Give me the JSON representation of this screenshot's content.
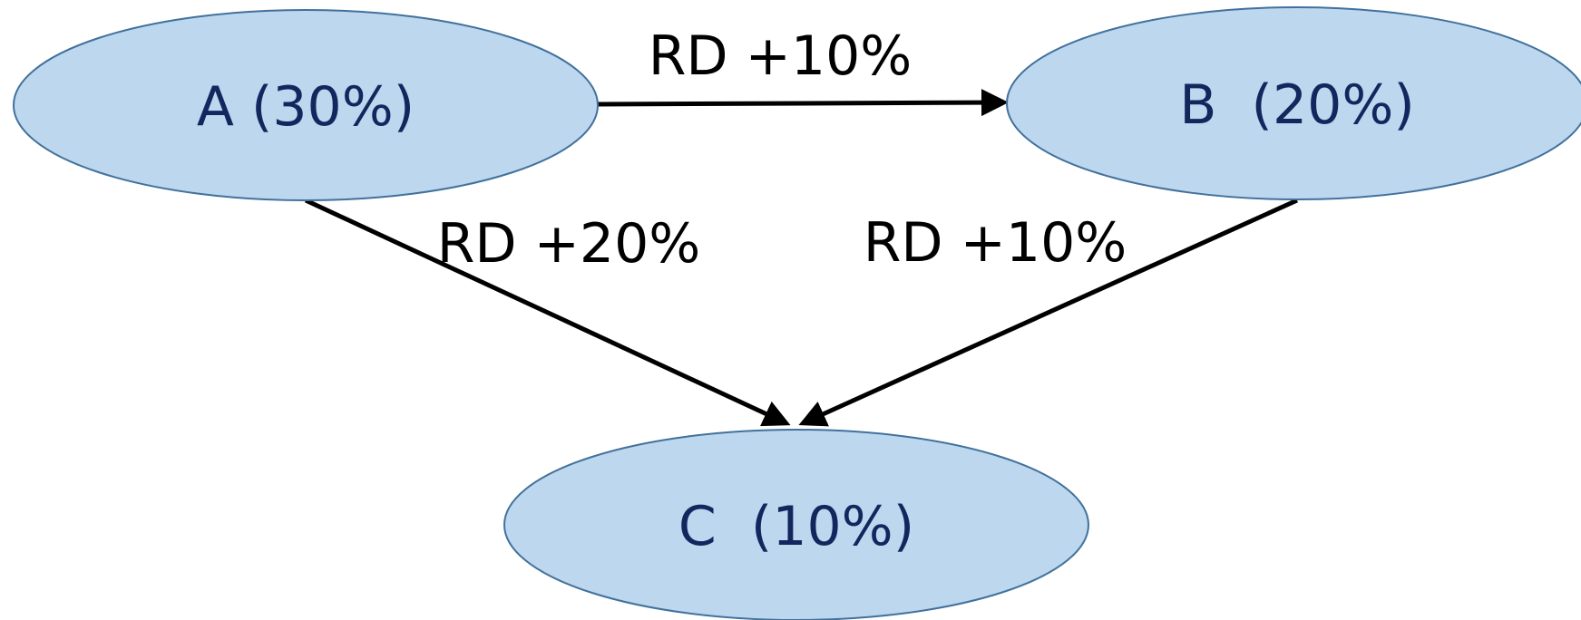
{
  "diagram": {
    "nodes": {
      "a": {
        "label": "A (30%)"
      },
      "b": {
        "label": "B  (20%)"
      },
      "c": {
        "label": "C  (10%)"
      }
    },
    "edges": {
      "a_to_b": {
        "label": "RD +10%"
      },
      "a_to_c": {
        "label": "RD +20%"
      },
      "b_to_c": {
        "label": "RD +10%"
      }
    },
    "colors": {
      "node_fill": "#bdd7ee",
      "node_stroke": "#41719c",
      "node_text": "#13275e",
      "edge": "#000000"
    }
  }
}
